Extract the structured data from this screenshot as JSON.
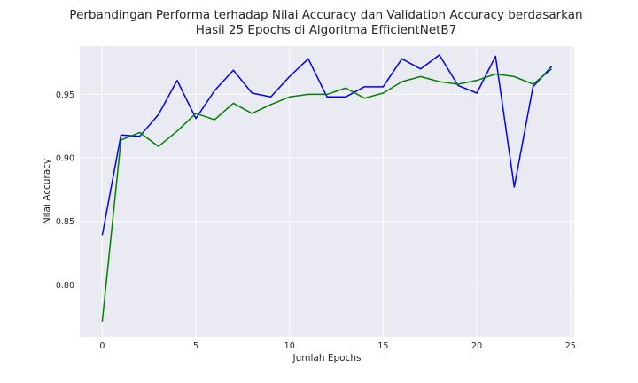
{
  "chart_data": {
    "type": "line",
    "title_lines": [
      "Perbandingan Performa terhadap Nilai Accuracy dan Validation Accuracy berdasarkan",
      "Hasil 25 Epochs di Algoritma EfficientNetB7"
    ],
    "xlabel": "Jumlah Epochs",
    "ylabel": "Nilai Accuracy",
    "xlim": [
      -1.2,
      25.2
    ],
    "ylim": [
      0.759,
      0.988
    ],
    "xticks": [
      0,
      5,
      10,
      15,
      20,
      25
    ],
    "yticks": [
      0.8,
      0.85,
      0.9,
      0.95
    ],
    "xtick_labels": [
      "0",
      "5",
      "10",
      "15",
      "20",
      "25"
    ],
    "ytick_labels": [
      "0.80",
      "0.85",
      "0.90",
      "0.95"
    ],
    "grid": true,
    "x": [
      0,
      1,
      2,
      3,
      4,
      5,
      6,
      7,
      8,
      9,
      10,
      11,
      12,
      13,
      14,
      15,
      16,
      17,
      18,
      19,
      20,
      21,
      22,
      23,
      24
    ],
    "series": [
      {
        "color": "#0000ff",
        "values": [
          0.839,
          0.918,
          0.917,
          0.934,
          0.961,
          0.931,
          0.953,
          0.969,
          0.951,
          0.948,
          0.964,
          0.978,
          0.948,
          0.948,
          0.956,
          0.956,
          0.978,
          0.97,
          0.981,
          0.957,
          0.951,
          0.98,
          0.877,
          0.956,
          0.972
        ]
      },
      {
        "color": "#008000",
        "values": [
          0.771,
          0.914,
          0.92,
          0.909,
          0.921,
          0.935,
          0.93,
          0.943,
          0.935,
          0.942,
          0.948,
          0.95,
          0.95,
          0.955,
          0.947,
          0.951,
          0.96,
          0.964,
          0.96,
          0.958,
          0.961,
          0.966,
          0.964,
          0.958,
          0.97
        ]
      }
    ],
    "colors": {
      "plot_bg": "#eaeaf2",
      "grid": "#ffffff",
      "text": "#262626"
    }
  }
}
